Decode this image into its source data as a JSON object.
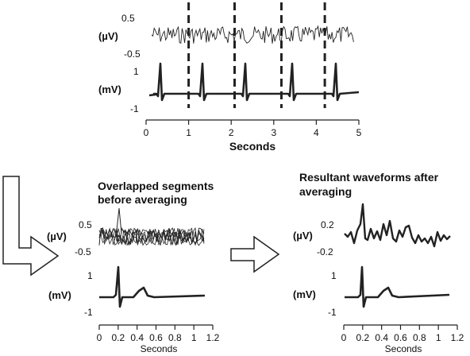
{
  "top_panel": {
    "microvolt_label": "(µV)",
    "millivolt_label": "(mV)",
    "uv_ticks": [
      "0.5",
      "-0.5"
    ],
    "mv_ticks": [
      "1",
      "-1"
    ],
    "x_ticks": [
      "0",
      "1",
      "2",
      "3",
      "4",
      "5"
    ],
    "x_label": "Seconds",
    "segment_markers_s": [
      1.0,
      2.08,
      3.18,
      4.2
    ]
  },
  "left_panel": {
    "title_line1": "Overlapped segments",
    "title_line2": "before averaging",
    "microvolt_label": "(µV)",
    "millivolt_label": "(mV)",
    "uv_ticks": [
      "0.5",
      "-0.5"
    ],
    "mv_ticks": [
      "1",
      "-1"
    ],
    "x_ticks": [
      "0",
      "0.2",
      "0.4",
      "0.6",
      "0.8",
      "1",
      "1.2"
    ],
    "x_label": "Seconds"
  },
  "right_panel": {
    "title_line1": "Resultant waveforms after",
    "title_line2": "averaging",
    "microvolt_label": "(µV)",
    "millivolt_label": "(mV)",
    "uv_ticks": [
      "0.2",
      "-0.2"
    ],
    "mv_ticks": [
      "1",
      "-1"
    ],
    "x_ticks": [
      "0",
      "0.2",
      "0.4",
      "0.6",
      "0.8",
      "1",
      "1.2"
    ],
    "x_label": "Seconds"
  },
  "colors": {
    "trace": "#222222",
    "arrow_fill": "#ffffff",
    "arrow_stroke": "#222222"
  }
}
